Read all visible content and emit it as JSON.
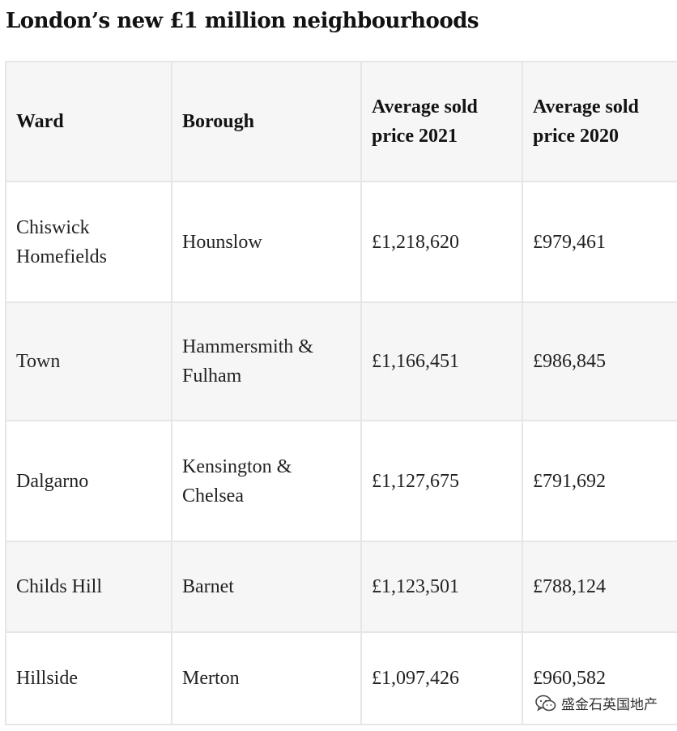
{
  "title": "London’s new £1 million neighbourhoods",
  "table": {
    "headers": {
      "ward": "Ward",
      "borough": "Borough",
      "price_2021": "Average sold price 2021",
      "price_2020": "Average sold price 2020"
    },
    "rows": [
      {
        "ward": "Chiswick Homefields",
        "borough": "Hounslow",
        "price_2021": "£1,218,620",
        "price_2020": "£979,461"
      },
      {
        "ward": "Town",
        "borough": "Hammersmith & Fulham",
        "price_2021": "£1,166,451",
        "price_2020": "£986,845"
      },
      {
        "ward": "Dalgarno",
        "borough": "Kensington & Chelsea",
        "price_2021": "£1,127,675",
        "price_2020": "£791,692"
      },
      {
        "ward": "Childs Hill",
        "borough": "Barnet",
        "price_2021": "£1,123,501",
        "price_2020": "£788,124"
      },
      {
        "ward": "Hillside",
        "borough": "Merton",
        "price_2021": "£1,097,426",
        "price_2020": "£960,582"
      }
    ]
  },
  "watermark": {
    "text": "盛金石英国地产",
    "icon": "wechat-icon"
  },
  "colors": {
    "header_bg": "#f6f6f6",
    "row_alt_bg": "#f6f6f6",
    "border": "#e6e6e6",
    "text": "#222222"
  }
}
